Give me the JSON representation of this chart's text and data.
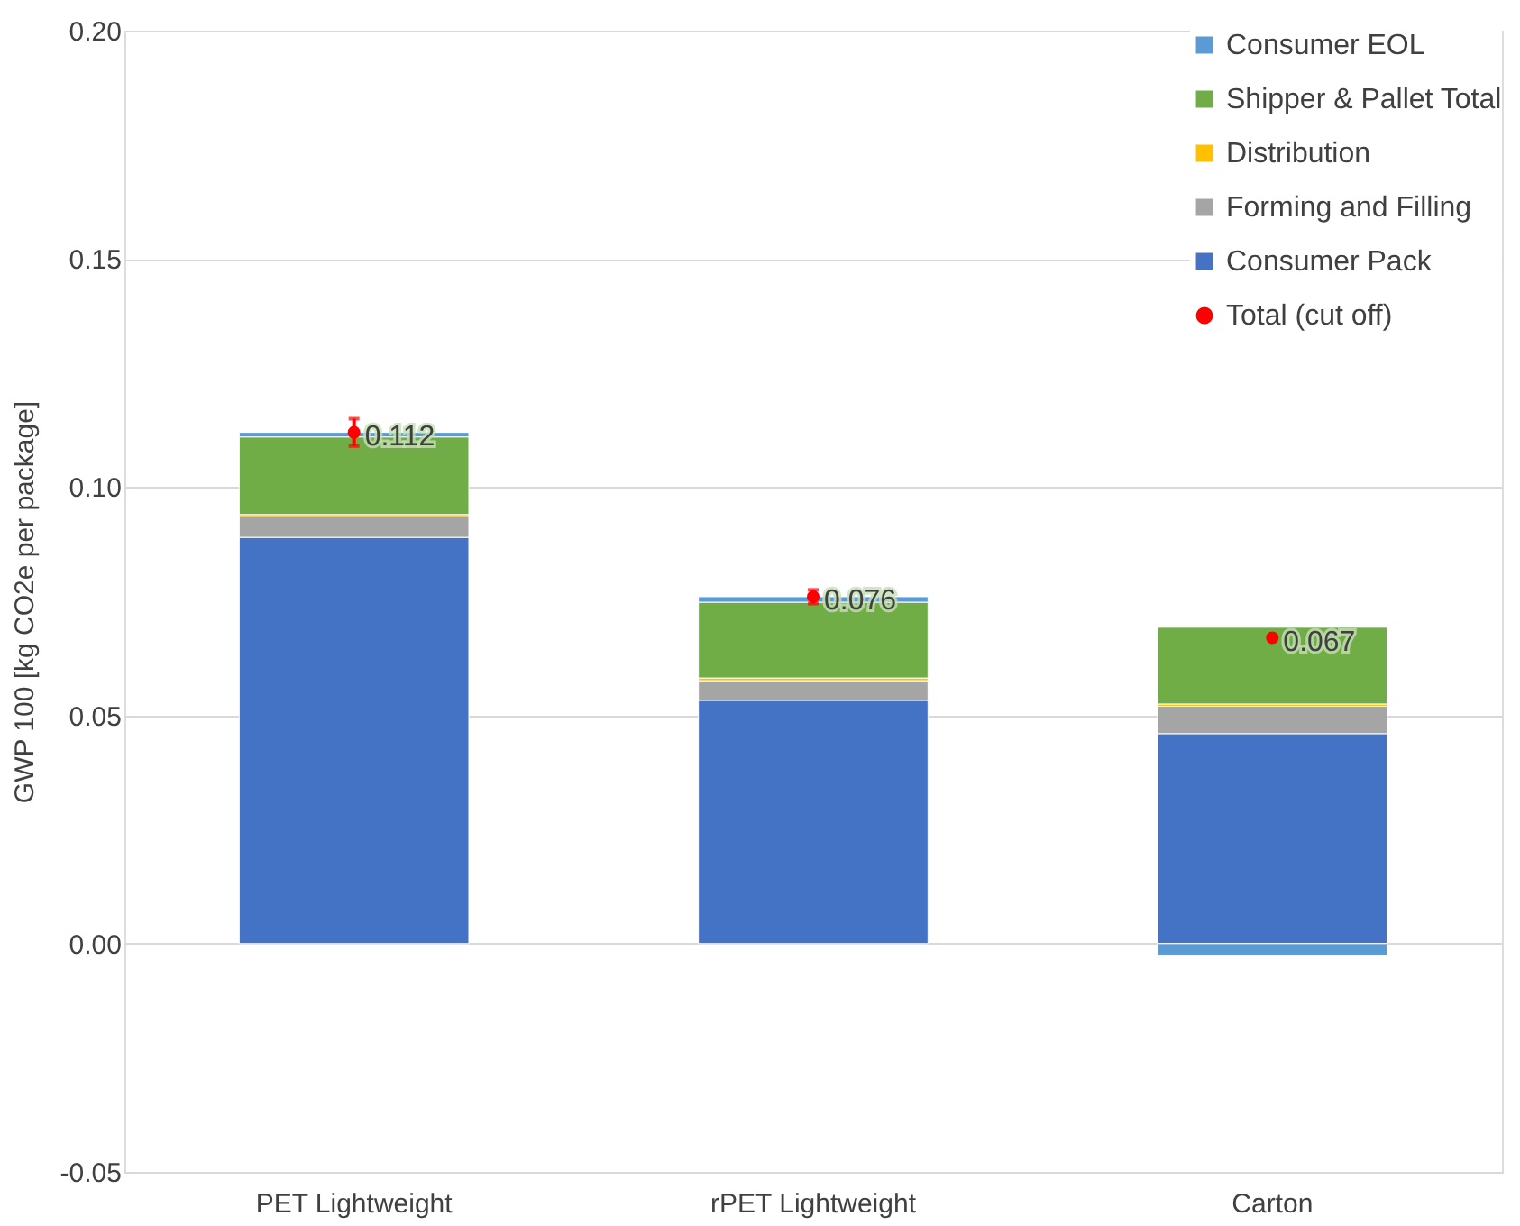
{
  "chart_data": {
    "type": "bar",
    "stacked": true,
    "ylabel": "GWP 100 [kg CO2e per package]",
    "categories": [
      "PET Lightweight",
      "rPET Lightweight",
      "Carton"
    ],
    "ylim": [
      -0.05,
      0.2
    ],
    "yticks": [
      {
        "value": -0.05,
        "label": "-0.05"
      },
      {
        "value": 0,
        "label": "0.00"
      },
      {
        "value": 0.05,
        "label": "0.05"
      },
      {
        "value": 0.1,
        "label": "0.10"
      },
      {
        "value": 0.15,
        "label": "0.15"
      },
      {
        "value": 0.2,
        "label": "0.20"
      }
    ],
    "grid": "y",
    "legend": "top right",
    "series": [
      {
        "name": "Consumer Pack",
        "color": "#4472c4",
        "values": [
          0.089,
          0.0533,
          0.046
        ]
      },
      {
        "name": "Forming and Filling",
        "color": "#a5a5a5",
        "values": [
          0.0045,
          0.0043,
          0.006
        ]
      },
      {
        "name": "Distribution",
        "color": "#ffc000",
        "values": [
          0.0005,
          0.0006,
          0.0005
        ]
      },
      {
        "name": "Shipper & Pallet Total",
        "color": "#70ad47",
        "values": [
          0.017,
          0.0166,
          0.0168
        ]
      },
      {
        "name": "Consumer EOL",
        "color": "#5b9bd5",
        "values": [
          0.001,
          0.0012,
          -0.0025
        ]
      },
      {
        "name": "Total (cut off)",
        "type": "scatter",
        "color": "#ff0000",
        "values": [
          0.112,
          0.076,
          0.067
        ],
        "errors": [
          0.003,
          0.0015,
          null
        ],
        "value_labels": [
          "0.112",
          "0.076",
          "0.067"
        ]
      }
    ]
  }
}
